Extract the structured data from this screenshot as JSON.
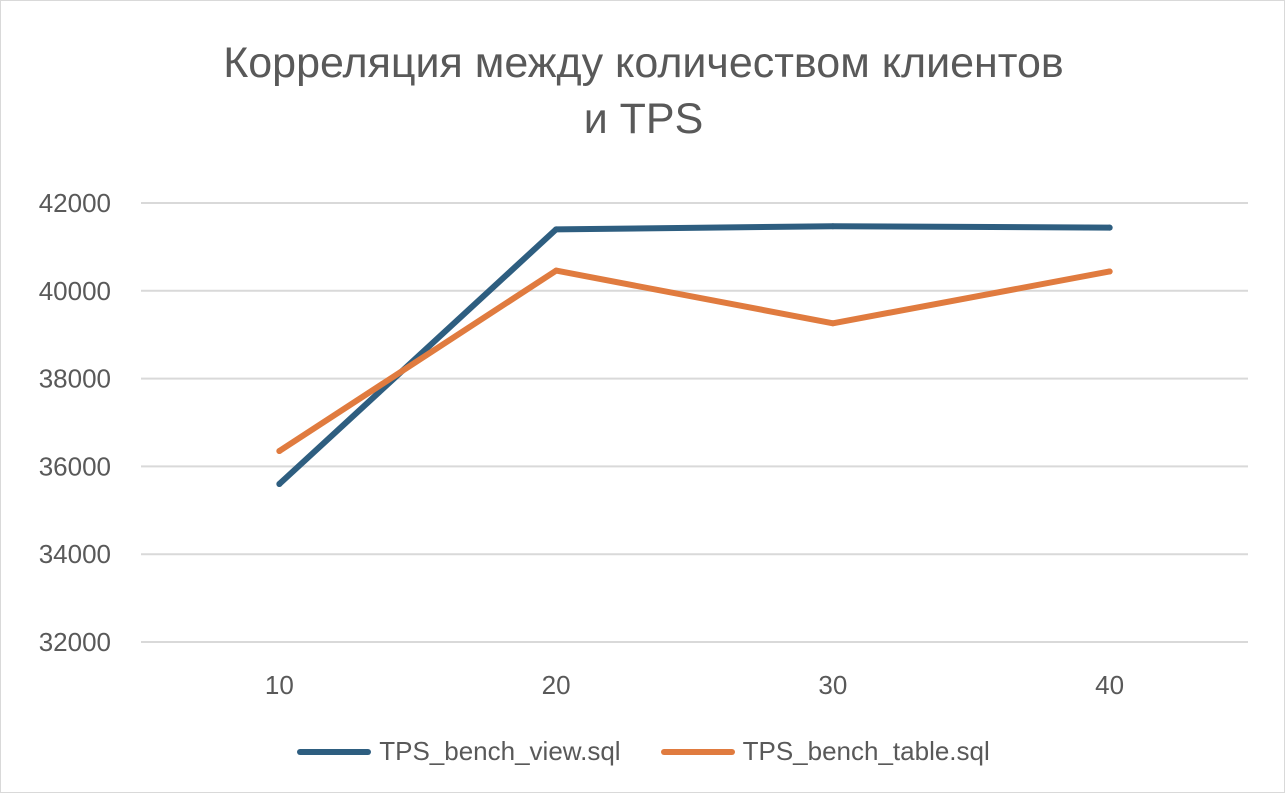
{
  "chart_data": {
    "type": "line",
    "title": "Корреляция между количеством клиентов и TPS",
    "title_lines": [
      "Корреляция между количеством клиентов",
      "и TPS"
    ],
    "xlabel": "",
    "ylabel": "",
    "categories": [
      "10",
      "20",
      "30",
      "40"
    ],
    "yticks": [
      "32000",
      "34000",
      "36000",
      "38000",
      "40000",
      "42000"
    ],
    "ylim": [
      32000,
      42000
    ],
    "grid": "horizontal",
    "legend_position": "bottom",
    "series": [
      {
        "name": "TPS_bench_view.sql",
        "color": "#2e5e80",
        "values": [
          35600,
          41400,
          41470,
          41440
        ]
      },
      {
        "name": "TPS_bench_table.sql",
        "color": "#e07b3f",
        "values": [
          36350,
          40460,
          39260,
          40440
        ]
      }
    ]
  }
}
